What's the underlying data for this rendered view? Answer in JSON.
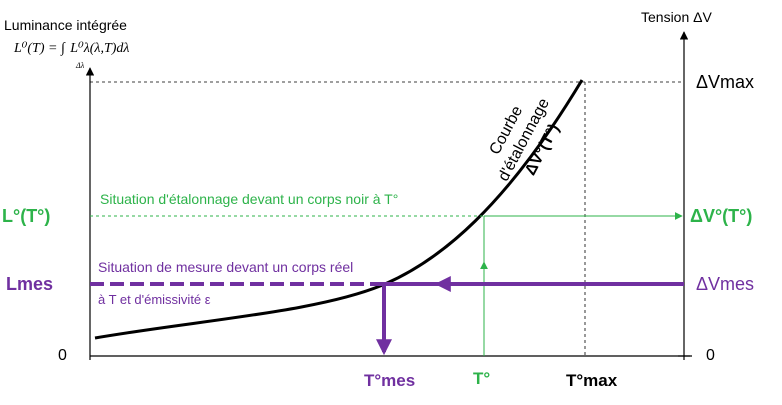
{
  "left_axis": {
    "title": "Luminance intégrée",
    "formula": {
      "lhs": "L⁰(T) = ∫",
      "integrand": "L⁰λ(λ,T)dλ",
      "subscript": "Δλ"
    },
    "origin_label": "0",
    "lcal_label": "L°(T°)",
    "lmes_label": "Lmes"
  },
  "right_axis": {
    "title": "Tension ΔV",
    "dvmax_label": "ΔVmax",
    "dvcal_label": "ΔV°(T°)",
    "dvmes_label": "ΔVmes",
    "origin_label": "0"
  },
  "x_axis": {
    "tmes_label": "T°mes",
    "tcal_label": "T°",
    "tmax_label": "T°max"
  },
  "curve": {
    "label_line1": "Courbe",
    "label_line2": "d'étalonnage",
    "label_line3": "ΔV°(T°)"
  },
  "annotations": {
    "calibration": "Situation d'étalonnage devant un corps noir à T°",
    "measurement_line1": "Situation de mesure devant un corps réel",
    "measurement_line2": "à T et d'émissivité ε"
  },
  "colors": {
    "green": "#2db34a",
    "purple": "#7030a0",
    "black": "#000000"
  }
}
